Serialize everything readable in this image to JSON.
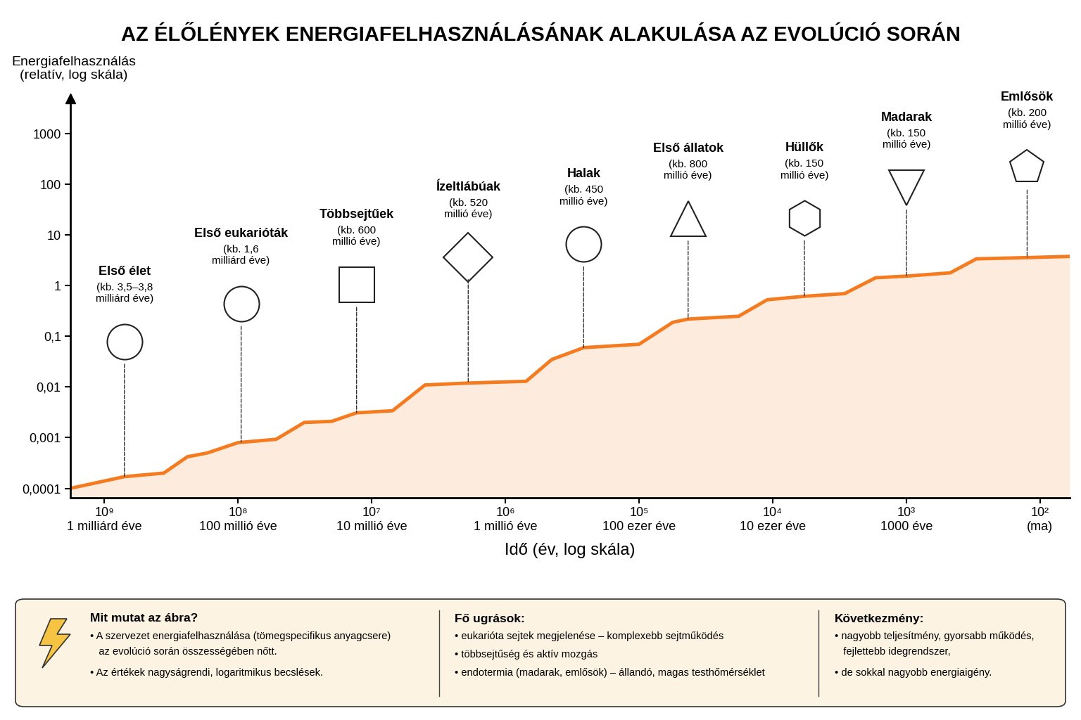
{
  "chart_data": {
    "type": "line",
    "title": "AZ ÉLŐLÉNYEK ENERGIAFELHASZNÁLÁSÁNAK ALAKULÁSA AZ EVOLÚCIÓ SORÁN",
    "x_label": "Idő (év, log skála)",
    "y_label": "Energiafelhasználás\n(relatív, log skála)",
    "log": true,
    "grid": false,
    "color": "#f47b20",
    "x": [
      1800000000.0,
      710000000.0,
      360000000.0,
      240000000.0,
      170000000.0,
      100000000.0,
      52000000.0,
      32000000.0,
      20000000.0,
      13000000.0,
      7000000.0,
      4000000.0,
      1900000.0,
      700000.0,
      450000.0,
      260000.0,
      100000.0,
      56000.0,
      43000.0,
      18000.0,
      11000.0,
      5800.0,
      2900.0,
      1700.0,
      1000.0,
      470,
      300,
      125,
      60
    ],
    "values": [
      0.0001,
      0.00017,
      0.0002,
      0.00042,
      0.0005,
      0.0008,
      0.00093,
      0.002,
      0.0021,
      0.0031,
      0.0034,
      0.011,
      0.012,
      0.013,
      0.035,
      0.06,
      0.07,
      0.19,
      0.22,
      0.25,
      0.53,
      0.62,
      0.7,
      1.44,
      1.55,
      1.8,
      3.4,
      3.6,
      3.8
    ],
    "xlim": [
      1800000000.0,
      60
    ],
    "ylim": [
      6.5e-05,
      5000
    ],
    "xticks": [
      {
        "value": 1000000000.0,
        "label": "10⁹\n1 milliárd éve"
      },
      {
        "value": 100000000.0,
        "label": "10⁸\n100 millió éve"
      },
      {
        "value": 10000000.0,
        "label": "10⁷\n10 millió éve"
      },
      {
        "value": 1000000.0,
        "label": "10⁶\n1 millió éve"
      },
      {
        "value": 100000.0,
        "label": "10⁵\n100 ezer éve"
      },
      {
        "value": 10000.0,
        "label": "10⁴\n10 ezer éve"
      },
      {
        "value": 1000.0,
        "label": "10³\n1000 éve"
      },
      {
        "value": 100.0,
        "label": "10²\n(ma)"
      }
    ],
    "yticks": [
      {
        "value": 0.0001,
        "label": "0,0001"
      },
      {
        "value": 0.001,
        "label": "0,001"
      },
      {
        "value": 0.01,
        "label": "0,01"
      },
      {
        "value": 0.1,
        "label": "0,1"
      },
      1,
      10,
      100,
      1000
    ],
    "annotations": [
      {
        "text": "Első élet",
        "date": "(kb. 3,5–3,8\nmilliárd éve)",
        "x": 710000000.0
      },
      {
        "text": "Első eukarióták",
        "date": "(kb. 1,6\nmilliárd éve)",
        "x": 95000000.0
      },
      {
        "text": "Többsejtűek",
        "date": "(kb. 600\nmillió éve)",
        "x": 13000000.0
      },
      {
        "text": "Ízeltlábúak",
        "date": "(kb. 520\nmillió éve)",
        "x": 1900000.0
      },
      {
        "text": "Halak",
        "date": "(kb. 450\nmillió éve)",
        "x": 260000.0
      },
      {
        "text": "Első állatok",
        "date": "(kb. 800\nmillió éve)",
        "x": 43000.0
      },
      {
        "text": "Hüllők",
        "date": "(kb. 150\nmillió éve)",
        "x": 5800.0
      },
      {
        "text": "Madarak",
        "date": "(kb. 150\nmillió éve)",
        "x": 1000.0
      },
      {
        "text": "Emlősök",
        "date": "(kb. 200\nmillió éve)",
        "x": 125
      }
    ]
  },
  "info_box": {
    "sections": [
      {
        "title": "Mit mutat az ábra?",
        "items": [
          "• A szervezet energiafelhasználása (tömegspecifikus anyagcsere)\n   az evolúció során összességében nőtt.",
          "• Az értékek nagyságrendi, logaritmikus becslések."
        ]
      },
      {
        "title": "Fő ugrások:",
        "items": [
          "• eukarióta sejtek megjelenése – komplexebb sejtműködés",
          "• többsejtűség és aktív mozgás",
          "• endotermia (madarak, emlősök) – állandó, magas testhőmérséklet"
        ]
      },
      {
        "title": "Következmény:",
        "items": [
          "• nagyobb teljesítmény, gyorsabb működés,\n   fejlettebb idegrendszer,",
          "• de sokkal nagyobb energiaigény."
        ]
      }
    ]
  }
}
